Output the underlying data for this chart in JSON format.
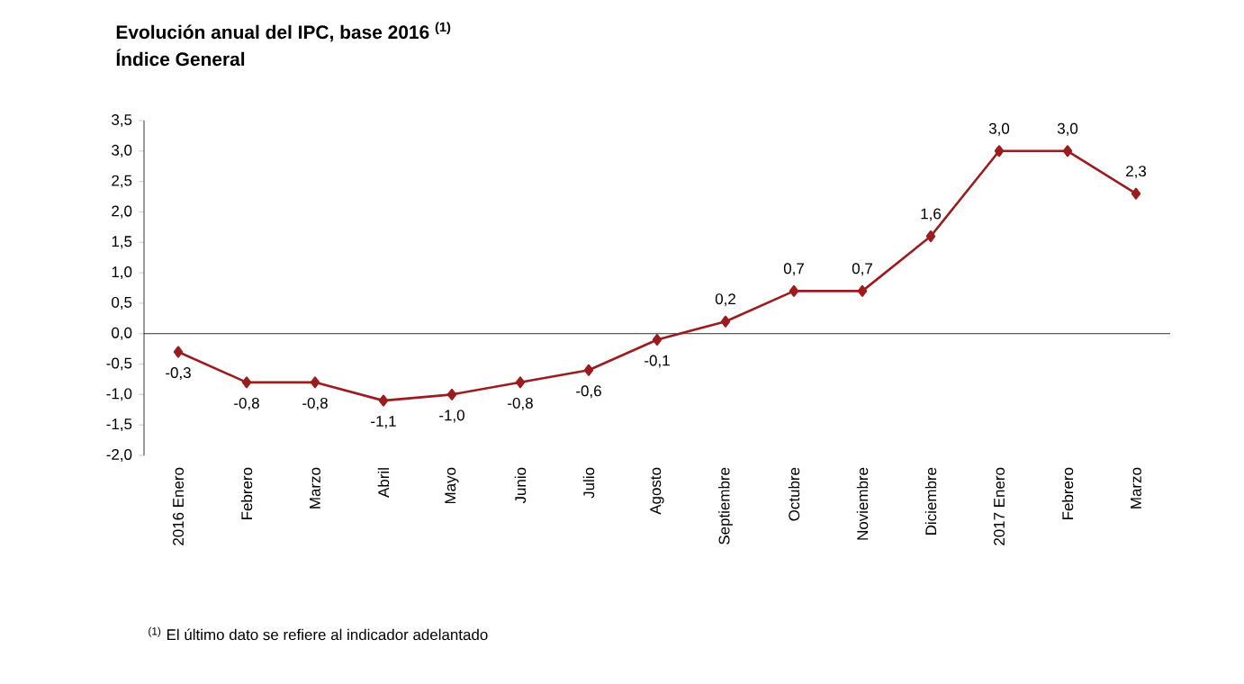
{
  "chart_data": {
    "type": "line",
    "title": "Evolución anual del IPC, base 2016 $^{(1)}$",
    "subtitle": "Índice General",
    "categories": [
      "2016 Enero",
      "Febrero",
      "Marzo",
      "Abril",
      "Mayo",
      "Junio",
      "Julio",
      "Agosto",
      "Septiembre",
      "Octubre",
      "Noviembre",
      "Diciembre",
      "2017 Enero",
      "Febrero",
      "Marzo"
    ],
    "values": [
      -0.3,
      -0.8,
      -0.8,
      -1.1,
      -1.0,
      -0.8,
      -0.6,
      -0.1,
      0.2,
      0.7,
      0.7,
      1.6,
      3.0,
      3.0,
      2.3
    ],
    "value_labels": [
      "-0,3",
      "-0,8",
      "-0,8",
      "-1,1",
      "-1,0",
      "-0,8",
      "-0,6",
      "-0,1",
      "0,2",
      "0,7",
      "0,7",
      "1,6",
      "3,0",
      "3,0",
      "2,3"
    ],
    "color": "#9b1c1f",
    "marker": "diamond",
    "ylim": [
      -2.0,
      3.5
    ],
    "yticks": [
      {
        "value": -2.0,
        "label": "-2,0"
      },
      {
        "value": -1.5,
        "label": "-1,5"
      },
      {
        "value": -1.0,
        "label": "-1,0"
      },
      {
        "value": -0.5,
        "label": "-0,5"
      },
      {
        "value": 0.0,
        "label": "0,0"
      },
      {
        "value": 0.5,
        "label": "0,5"
      },
      {
        "value": 1.0,
        "label": "1,0"
      },
      {
        "value": 1.5,
        "label": "1,5"
      },
      {
        "value": 2.0,
        "label": "2,0"
      },
      {
        "value": 2.5,
        "label": "2,5"
      },
      {
        "value": 3.0,
        "label": "3,0"
      },
      {
        "value": 3.5,
        "label": "3,5"
      }
    ],
    "annotations": [
      "$^{(1)}$ El último dato se refiere al indicador adelantado"
    ]
  }
}
